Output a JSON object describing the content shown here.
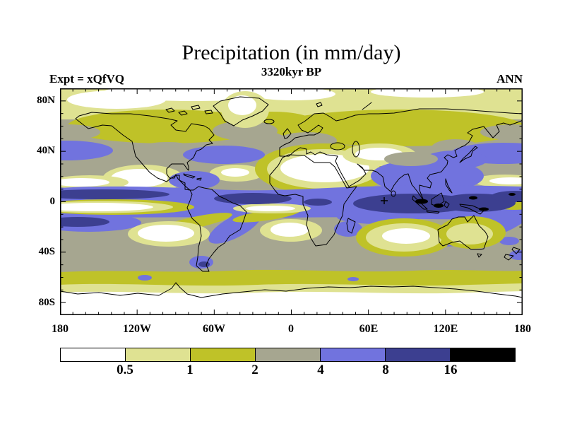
{
  "title": "Precipitation (in mm/day)",
  "subtitle": "3320kyr BP",
  "header": {
    "experiment_label": "Expt = xQfVQ",
    "season_label": "ANN"
  },
  "axes": {
    "x_tick_labels": [
      "180",
      "120W",
      "60W",
      "0",
      "60E",
      "120E",
      "180"
    ],
    "y_tick_labels": [
      "80N",
      "40N",
      "0",
      "40S",
      "80S"
    ]
  },
  "colorbar": {
    "boundary_labels": [
      "0.5",
      "1",
      "2",
      "4",
      "8",
      "16"
    ],
    "colors": [
      "#ffffff",
      "#dfe292",
      "#bfc228",
      "#a6a690",
      "#7173de",
      "#3c3f90",
      "#000000"
    ],
    "band_ranges": [
      "<0.5",
      "0.5-1",
      "1-2",
      "2-4",
      "4-8",
      "8-16",
      ">16"
    ],
    "units": "mm/day"
  },
  "map_marker": {
    "symbol": "+",
    "location_note": "equatorial Indian Ocean, ~72E 0N"
  },
  "chart_data": {
    "type": "heatmap",
    "subtype": "filled-contour-global-map",
    "title": "Precipitation (in mm/day)",
    "subtitle": "3320kyr BP",
    "experiment": "xQfVQ",
    "season": "ANN",
    "units": "mm/day",
    "projection": "equirectangular",
    "lon_range": [
      -180,
      180
    ],
    "lat_range": [
      -90,
      90
    ],
    "x_tick_labels": [
      "180",
      "120W",
      "60W",
      "0",
      "60E",
      "120E",
      "180"
    ],
    "y_tick_labels": [
      "80N",
      "40N",
      "0",
      "40S",
      "80S"
    ],
    "contour_levels_mm_day": [
      0.5,
      1,
      2,
      4,
      8,
      16
    ],
    "bands": [
      {
        "range": "<0.5",
        "color": "#ffffff"
      },
      {
        "range": "0.5-1",
        "color": "#dfe292"
      },
      {
        "range": "1-2",
        "color": "#bfc228"
      },
      {
        "range": "2-4",
        "color": "#a6a690"
      },
      {
        "range": "4-8",
        "color": "#7173de"
      },
      {
        "range": "8-16",
        "color": "#3c3f90"
      },
      {
        "range": ">16",
        "color": "#000000"
      }
    ],
    "features": [
      "Heavy ITCZ rain band (4-16 mm/day) circling the equator, darkest (8-16) over the Indian Ocean, Maritime Continent and west Pacific with >16 mm/day black patches over Indonesia / New Guinea",
      "Equatorial east-Pacific dry tongue (<0.5-1) splitting the blue band west of South America",
      "Subtropical dry cells (<0.5) over the NE Pacific off Mexico, Sahara-Arabia-central Asia, central Atlantic, SE Pacific, S Atlantic off Namibia, and southern Indian Ocean",
      "Mid-latitude 2-4 mm/day gray belts with 4-8 storm tracks off east North America and over the NW Pacific / Kuroshio and SPCZ / SACZ diagonals",
      "Olive 1-2 mm/day belts across Canada, Siberia and the Southern Ocean near 60S",
      "Pale-yellow to white (<1) polar caps over the Arctic, Greenland and the Antarctic interior",
      "Site marker '+' near 72E, 0N"
    ],
    "site_marker": {
      "symbol": "+",
      "lon_approx": 72,
      "lat_approx": 0
    },
    "grid": false,
    "legend_position": "horizontal colorbar below map"
  }
}
